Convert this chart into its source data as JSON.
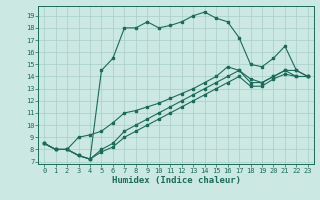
{
  "xlabel": "Humidex (Indice chaleur)",
  "xlim": [
    -0.5,
    23.5
  ],
  "ylim": [
    6.8,
    19.8
  ],
  "xticks": [
    0,
    1,
    2,
    3,
    4,
    5,
    6,
    7,
    8,
    9,
    10,
    11,
    12,
    13,
    14,
    15,
    16,
    17,
    18,
    19,
    20,
    21,
    22,
    23
  ],
  "yticks": [
    7,
    8,
    9,
    10,
    11,
    12,
    13,
    14,
    15,
    16,
    17,
    18,
    19
  ],
  "bg_color": "#cce8e2",
  "grid_color": "#a8cec8",
  "line_color": "#1a6b5a",
  "curve1": [
    8.5,
    8.0,
    8.0,
    7.5,
    7.2,
    14.5,
    15.5,
    18.0,
    18.0,
    18.5,
    18.0,
    18.2,
    18.5,
    19.0,
    19.3,
    18.8,
    18.5,
    17.2,
    15.0,
    14.8,
    15.5,
    16.5,
    14.5,
    14.0
  ],
  "curve2": [
    8.5,
    8.0,
    8.0,
    9.0,
    9.2,
    9.5,
    10.2,
    11.0,
    11.2,
    11.5,
    11.8,
    12.2,
    12.6,
    13.0,
    13.5,
    14.0,
    14.8,
    14.5,
    13.8,
    13.5,
    14.0,
    14.5,
    14.5,
    14.0
  ],
  "curve3": [
    8.5,
    8.0,
    8.0,
    7.5,
    7.2,
    8.0,
    8.5,
    9.5,
    10.0,
    10.5,
    11.0,
    11.5,
    12.0,
    12.5,
    13.0,
    13.5,
    14.0,
    14.5,
    13.5,
    13.5,
    14.0,
    14.5,
    14.0,
    14.0
  ],
  "curve4": [
    8.5,
    8.0,
    8.0,
    7.5,
    7.2,
    7.8,
    8.2,
    9.0,
    9.5,
    10.0,
    10.5,
    11.0,
    11.5,
    12.0,
    12.5,
    13.0,
    13.5,
    14.0,
    13.2,
    13.2,
    13.8,
    14.2,
    14.0,
    14.0
  ]
}
